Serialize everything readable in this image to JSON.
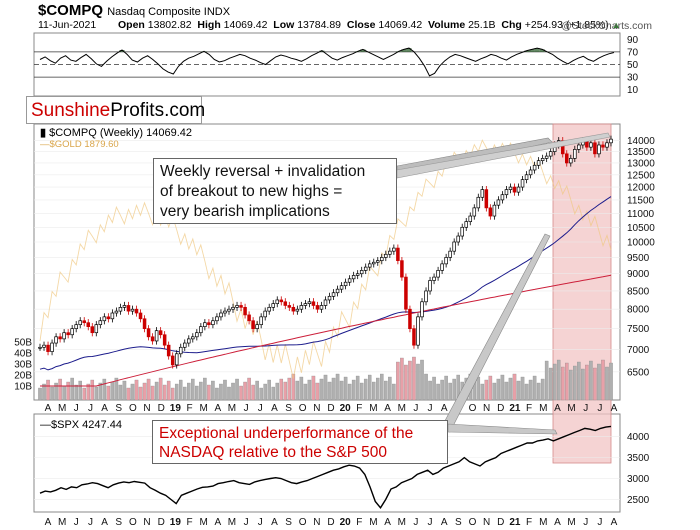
{
  "header": {
    "ticker": "$COMPQ",
    "description": "Nasdaq Composite INDX",
    "date": "11-Jun-2021",
    "open_label": "Open",
    "open": "13802.82",
    "high_label": "High",
    "high": "14069.42",
    "low_label": "Low",
    "low": "13784.89",
    "close_label": "Close",
    "close": "14069.42",
    "volume_label": "Volume",
    "volume": "25.1B",
    "chg_label": "Chg",
    "chg": "+254.93 (+1.85%)",
    "brand": "@StockCharts.com"
  },
  "logo": {
    "part1": "Sunshine",
    "part2": "Profits.com"
  },
  "legends": {
    "main": "$COMPQ (Weekly) 14069.42",
    "gold": "$GOLD 1879.60",
    "spx": "$SPX 4247.44"
  },
  "annotations": {
    "reversal": [
      "Weekly reversal + invalidation",
      "of breakout to new highs =",
      "very bearish implications"
    ],
    "underperformance": [
      "Exceptional underperformance of the",
      "NASDAQ relative to the S&P 500"
    ]
  },
  "colors": {
    "up": "#000000",
    "down": "#cc0000",
    "ma_short": "#1c1c8c",
    "ma_long": "#cc1f3a",
    "gold": "#f0c880",
    "volume_up": "#b0b0b0",
    "volume_down": "#e8a0a8",
    "highlight": "#f2c4c4"
  },
  "chart_data": [
    {
      "type": "line",
      "panel": "rsi-indicator",
      "yticks": [
        10,
        30,
        50,
        70,
        90
      ],
      "reference_lines": [
        30,
        50,
        70
      ],
      "series": [
        {
          "values": [
            58,
            62,
            56,
            52,
            60,
            64,
            57,
            55,
            61,
            66,
            59,
            51,
            47,
            55,
            62,
            68,
            73,
            66,
            57,
            54,
            60,
            64,
            58,
            51,
            43,
            38,
            35,
            47,
            55,
            60,
            63,
            67,
            71,
            66,
            58,
            54,
            56,
            60,
            63,
            66,
            64,
            60,
            57,
            53,
            50,
            56,
            62,
            65,
            63,
            60,
            58,
            55,
            59,
            64,
            68,
            72,
            66,
            60,
            57,
            61,
            64,
            67,
            71,
            74,
            70,
            66,
            62,
            58,
            62,
            66,
            71,
            74,
            76,
            70,
            60,
            48,
            32,
            36,
            48,
            56,
            62,
            66,
            64,
            61,
            58,
            55,
            59,
            62,
            66,
            64,
            60,
            57,
            62,
            66,
            69,
            72,
            74,
            76,
            74,
            70,
            66,
            60,
            55,
            51,
            56,
            60,
            63,
            58,
            55,
            60,
            64,
            67,
            69
          ]
        }
      ]
    },
    {
      "type": "candlestick",
      "panel": "price",
      "title": "$COMPQ (Weekly) 14069.42",
      "x_ticks": [
        "A",
        "M",
        "J",
        "J",
        "A",
        "S",
        "O",
        "N",
        "D",
        "19",
        "F",
        "M",
        "A",
        "M",
        "J",
        "J",
        "A",
        "S",
        "O",
        "N",
        "D",
        "20",
        "F",
        "M",
        "A",
        "M",
        "J",
        "J",
        "A",
        "S",
        "O",
        "N",
        "D",
        "21",
        "F",
        "M",
        "A",
        "M",
        "J",
        "J",
        "A"
      ],
      "yticks_right": [
        6500,
        7000,
        7500,
        8000,
        8500,
        9000,
        9500,
        10000,
        10500,
        11000,
        11500,
        12000,
        12500,
        13000,
        13500,
        14000
      ],
      "yscale": "log",
      "ylim": [
        6200,
        14600
      ],
      "volume_ticks_left": [
        "10B",
        "20B",
        "30B",
        "40B",
        "50B"
      ],
      "close_series": [
        7050,
        7100,
        6950,
        7150,
        7300,
        7250,
        7400,
        7350,
        7500,
        7600,
        7700,
        7650,
        7550,
        7400,
        7600,
        7700,
        7800,
        7750,
        7900,
        7950,
        8050,
        8100,
        7950,
        8000,
        7900,
        7750,
        7500,
        7300,
        7200,
        7450,
        7350,
        7100,
        6850,
        6650,
        6900,
        7050,
        7150,
        7250,
        7300,
        7400,
        7550,
        7650,
        7600,
        7700,
        7800,
        7900,
        7950,
        8000,
        8050,
        8100,
        8050,
        7850,
        7700,
        7500,
        7600,
        7800,
        7950,
        8050,
        8150,
        8250,
        8200,
        8100,
        8050,
        7950,
        8000,
        8100,
        8150,
        8200,
        8100,
        8000,
        8100,
        8250,
        8350,
        8450,
        8550,
        8650,
        8750,
        8850,
        8950,
        9000,
        9100,
        9200,
        9300,
        9350,
        9400,
        9500,
        9600,
        9700,
        9800,
        9400,
        8900,
        8000,
        7500,
        7100,
        7800,
        8200,
        8500,
        8800,
        8900,
        9100,
        9300,
        9500,
        9700,
        10000,
        10200,
        10500,
        10700,
        10900,
        11200,
        11600,
        11900,
        11200,
        10900,
        11300,
        11500,
        11700,
        11900,
        12000,
        11800,
        12000,
        12300,
        12500,
        12700,
        12900,
        13100,
        13200,
        13300,
        13500,
        13800,
        14000,
        13400,
        13000,
        13200,
        13600,
        13800,
        14000,
        13700,
        13900,
        13400,
        13800,
        13700,
        13900,
        14069
      ]
    },
    {
      "type": "line",
      "panel": "spx",
      "title": "$SPX 4247.44",
      "yticks_right": [
        2500,
        3000,
        3500,
        4000
      ],
      "ylim": [
        2200,
        4400
      ],
      "series": [
        {
          "values": [
            2650,
            2700,
            2680,
            2720,
            2780,
            2740,
            2800,
            2780,
            2850,
            2870,
            2900,
            2880,
            2830,
            2780,
            2850,
            2890,
            2920,
            2900,
            2930,
            2910,
            2890,
            2780,
            2720,
            2650,
            2600,
            2500,
            2400,
            2600,
            2650,
            2700,
            2750,
            2790,
            2800,
            2820,
            2880,
            2900,
            2930,
            2950,
            2900,
            2880,
            2860,
            2920,
            2950,
            2980,
            3000,
            3020,
            3000,
            2950,
            2900,
            2880,
            2920,
            2950,
            3000,
            3050,
            3100,
            3150,
            3200,
            3230,
            3280,
            3320,
            3300,
            3250,
            3100,
            2800,
            2450,
            2300,
            2500,
            2750,
            2800,
            2900,
            2950,
            3000,
            3100,
            3150,
            3200,
            3100,
            3150,
            3250,
            3300,
            3350,
            3400,
            3500,
            3400,
            3350,
            3300,
            3400,
            3450,
            3500,
            3600,
            3650,
            3700,
            3750,
            3800,
            3850,
            3850,
            3900,
            3920,
            3950,
            3900,
            3950,
            4000,
            4050,
            4100,
            4150,
            4200,
            4180,
            4150,
            4200,
            4230,
            4247
          ]
        }
      ]
    }
  ]
}
